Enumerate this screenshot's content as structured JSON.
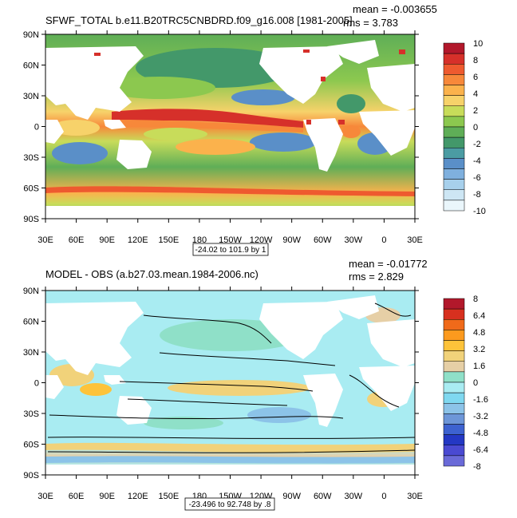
{
  "chart_data": [
    {
      "type": "heatmap",
      "title": "SFWF_TOTAL b.e11.B20TRC5CNBDRD.f09_g16.008 [1981-2005]",
      "stats": {
        "mean": "mean = -0.003655",
        "rms": "rms = 3.783"
      },
      "contour_info": "-24.02 to 101.9 by 1",
      "x_ticks": [
        "30E",
        "60E",
        "90E",
        "120E",
        "150E",
        "180",
        "150W",
        "120W",
        "90W",
        "60W",
        "30W",
        "0",
        "30E"
      ],
      "y_ticks": [
        "90N",
        "60N",
        "30N",
        "0",
        "30S",
        "60S",
        "90S"
      ],
      "colorbar": {
        "labels": [
          "10",
          "8",
          "6",
          "4",
          "2",
          "0",
          "-2",
          "-4",
          "-6",
          "-8",
          "-10"
        ],
        "colors": [
          "#b2182b",
          "#d6302a",
          "#ee5a2f",
          "#f7883a",
          "#fbb24c",
          "#f7d26a",
          "#c8dc5a",
          "#8cc84f",
          "#5fae57",
          "#43986a",
          "#4b9ca3",
          "#5a8fc8",
          "#7fb0de",
          "#a7d0ec",
          "#cde6f4",
          "#eaf6fb"
        ]
      }
    },
    {
      "type": "heatmap",
      "title": "MODEL - OBS (a.b27.03.mean.1984-2006.nc)",
      "stats": {
        "mean": "mean = -0.01772",
        "rms": "rms = 2.829"
      },
      "contour_info": "-23.496 to 92.748 by .8",
      "x_ticks": [
        "30E",
        "60E",
        "90E",
        "120E",
        "150E",
        "180",
        "150W",
        "120W",
        "90W",
        "60W",
        "30W",
        "0",
        "30E"
      ],
      "y_ticks": [
        "90N",
        "60N",
        "30N",
        "0",
        "30S",
        "60S",
        "90S"
      ],
      "colorbar": {
        "labels": [
          "8",
          "6.4",
          "4.8",
          "3.2",
          "1.6",
          "0",
          "-1.6",
          "-3.2",
          "-4.8",
          "-6.4",
          "-8"
        ],
        "colors": [
          "#b2182b",
          "#d7301f",
          "#f06a1a",
          "#fc9a1e",
          "#fdc33a",
          "#f1d27a",
          "#e6cfa6",
          "#8fe0c8",
          "#a9ecf2",
          "#7fd8f0",
          "#8cc3e8",
          "#6d96d8",
          "#3d62d0",
          "#2438c4",
          "#4a4ad2",
          "#6a6ad8"
        ]
      }
    }
  ]
}
